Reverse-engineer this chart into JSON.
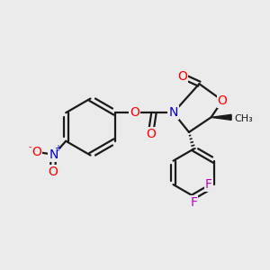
{
  "bg_color": "#ebebeb",
  "bond_color": "#1a1a1a",
  "bond_width": 1.6,
  "atom_colors": {
    "O": "#ff0000",
    "N": "#0000cc",
    "F": "#bb00bb",
    "C": "#1a1a1a"
  },
  "font_size": 10,
  "font_size_small": 8,
  "font_size_charge": 7
}
